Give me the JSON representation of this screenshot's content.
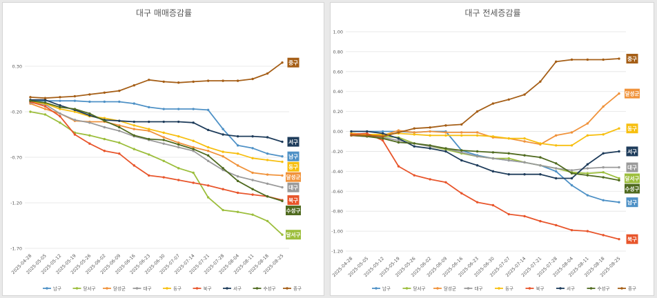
{
  "chart_data": [
    {
      "type": "line",
      "title": "대구 매매증감률",
      "x": [
        "2025-04-28",
        "2025-05-05",
        "2025-05-12",
        "2025-05-19",
        "2025-05-26",
        "2025-06-02",
        "2025-06-09",
        "2025-06-16",
        "2025-06-23",
        "2025-06-30",
        "2025-07-07",
        "2025-07-14",
        "2025-07-21",
        "2025-07-28",
        "2025-08-04",
        "2025-08-11",
        "2025-08-18",
        "2025-08-25"
      ],
      "ylim": [
        -1.7,
        0.8
      ],
      "yticks": [
        -1.7,
        -1.2,
        -0.7,
        -0.2,
        0.3
      ],
      "ytick_labels": [
        "-1.70",
        "-1.20",
        "-0.70",
        "-0.20",
        "0.30"
      ],
      "grid": "horizontal",
      "legend": "bottom",
      "series": [
        {
          "name": "남구",
          "color": "#4e91c6",
          "values": [
            -0.08,
            -0.08,
            -0.08,
            -0.08,
            -0.09,
            -0.09,
            -0.09,
            -0.11,
            -0.15,
            -0.17,
            -0.17,
            -0.17,
            -0.18,
            -0.39,
            -0.57,
            -0.6,
            -0.66,
            -0.69
          ]
        },
        {
          "name": "달서구",
          "color": "#9cbe3c",
          "values": [
            -0.2,
            -0.23,
            -0.32,
            -0.43,
            -0.46,
            -0.5,
            -0.54,
            -0.61,
            -0.67,
            -0.74,
            -0.82,
            -0.87,
            -1.14,
            -1.28,
            -1.3,
            -1.33,
            -1.4,
            -1.55
          ]
        },
        {
          "name": "달성군",
          "color": "#f0923a",
          "values": [
            -0.11,
            -0.17,
            -0.22,
            -0.3,
            -0.31,
            -0.31,
            -0.35,
            -0.39,
            -0.41,
            -0.48,
            -0.54,
            -0.59,
            -0.63,
            -0.69,
            -0.79,
            -0.87,
            -0.89,
            -0.9
          ]
        },
        {
          "name": "대구",
          "color": "#9a9a9a",
          "values": [
            -0.1,
            -0.12,
            -0.22,
            -0.29,
            -0.32,
            -0.37,
            -0.41,
            -0.47,
            -0.51,
            -0.55,
            -0.59,
            -0.63,
            -0.74,
            -0.84,
            -0.91,
            -0.95,
            -0.99,
            -1.03
          ]
        },
        {
          "name": "동구",
          "color": "#f7bf10",
          "values": [
            -0.09,
            -0.11,
            -0.17,
            -0.2,
            -0.25,
            -0.27,
            -0.3,
            -0.35,
            -0.39,
            -0.43,
            -0.47,
            -0.52,
            -0.59,
            -0.64,
            -0.66,
            -0.71,
            -0.73,
            -0.75
          ]
        },
        {
          "name": "북구",
          "color": "#e8552b",
          "values": [
            -0.09,
            -0.14,
            -0.25,
            -0.45,
            -0.55,
            -0.63,
            -0.66,
            -0.79,
            -0.9,
            -0.92,
            -0.95,
            -0.98,
            -1.01,
            -1.05,
            -1.09,
            -1.11,
            -1.13,
            -1.17
          ]
        },
        {
          "name": "서구",
          "color": "#1e3c5b",
          "values": [
            -0.07,
            -0.07,
            -0.13,
            -0.18,
            -0.24,
            -0.29,
            -0.3,
            -0.31,
            -0.31,
            -0.31,
            -0.31,
            -0.32,
            -0.4,
            -0.45,
            -0.47,
            -0.47,
            -0.48,
            -0.53
          ]
        },
        {
          "name": "수성구",
          "color": "#4f6a1f",
          "values": [
            -0.08,
            -0.1,
            -0.15,
            -0.17,
            -0.22,
            -0.3,
            -0.37,
            -0.46,
            -0.5,
            -0.51,
            -0.56,
            -0.61,
            -0.68,
            -0.82,
            -0.96,
            -1.05,
            -1.13,
            -1.18
          ]
        },
        {
          "name": "중구",
          "color": "#a55e16",
          "values": [
            -0.04,
            -0.05,
            -0.04,
            -0.03,
            -0.01,
            0.01,
            0.03,
            0.09,
            0.15,
            0.13,
            0.12,
            0.13,
            0.14,
            0.14,
            0.14,
            0.16,
            0.22,
            0.34
          ]
        }
      ]
    },
    {
      "type": "line",
      "title": "대구 전세증감률",
      "x": [
        "2025-04-28",
        "2025-05-05",
        "2025-05-12",
        "2025-05-19",
        "2025-05-26",
        "2025-06-02",
        "2025-06-09",
        "2025-06-16",
        "2025-06-23",
        "2025-06-30",
        "2025-07-07",
        "2025-07-14",
        "2025-07-21",
        "2025-07-28",
        "2025-08-04",
        "2025-08-11",
        "2025-08-18",
        "2025-08-25"
      ],
      "ylim": [
        -1.2,
        1.0
      ],
      "yticks": [
        -1.2,
        -1.0,
        -0.8,
        -0.6,
        -0.4,
        -0.2,
        0.0,
        0.2,
        0.4,
        0.6,
        0.8,
        1.0
      ],
      "ytick_labels": [
        "-1.20",
        "-1.00",
        "-0.80",
        "-0.60",
        "-0.40",
        "-0.20",
        "0.00",
        "0.20",
        "0.40",
        "0.60",
        "0.80",
        "1.00"
      ],
      "grid": "horizontal",
      "legend": "bottom",
      "series": [
        {
          "name": "남구",
          "color": "#4e91c6",
          "values": [
            0.0,
            0.0,
            0.0,
            0.0,
            -0.01,
            0.0,
            0.0,
            -0.19,
            -0.24,
            -0.27,
            -0.29,
            -0.31,
            -0.34,
            -0.4,
            -0.54,
            -0.64,
            -0.69,
            -0.71
          ]
        },
        {
          "name": "달서구",
          "color": "#9cbe3c",
          "values": [
            -0.02,
            -0.05,
            -0.05,
            -0.06,
            -0.12,
            -0.15,
            -0.18,
            -0.22,
            -0.25,
            -0.27,
            -0.27,
            -0.31,
            -0.34,
            -0.37,
            -0.41,
            -0.42,
            -0.41,
            -0.47
          ]
        },
        {
          "name": "달성군",
          "color": "#f0923a",
          "values": [
            -0.02,
            -0.03,
            -0.04,
            0.01,
            -0.01,
            0.0,
            -0.01,
            -0.01,
            -0.01,
            -0.06,
            -0.07,
            -0.1,
            -0.13,
            -0.04,
            -0.01,
            0.08,
            0.25,
            0.38
          ]
        },
        {
          "name": "대구",
          "color": "#9a9a9a",
          "values": [
            -0.04,
            -0.05,
            -0.06,
            -0.09,
            -0.12,
            -0.15,
            -0.17,
            -0.21,
            -0.25,
            -0.27,
            -0.29,
            -0.31,
            -0.34,
            -0.37,
            -0.39,
            -0.37,
            -0.36,
            -0.36
          ]
        },
        {
          "name": "동구",
          "color": "#f7bf10",
          "values": [
            -0.02,
            -0.03,
            -0.03,
            -0.02,
            -0.03,
            -0.04,
            -0.04,
            -0.04,
            -0.04,
            -0.05,
            -0.07,
            -0.07,
            -0.12,
            -0.14,
            -0.14,
            -0.04,
            -0.03,
            0.03
          ]
        },
        {
          "name": "북구",
          "color": "#e8552b",
          "values": [
            -0.03,
            -0.02,
            -0.09,
            -0.35,
            -0.44,
            -0.48,
            -0.51,
            -0.62,
            -0.71,
            -0.74,
            -0.83,
            -0.85,
            -0.9,
            -0.94,
            -0.99,
            -1.0,
            -1.04,
            -1.08
          ]
        },
        {
          "name": "서구",
          "color": "#1e3c5b",
          "values": [
            0.0,
            0.0,
            -0.02,
            -0.07,
            -0.15,
            -0.17,
            -0.2,
            -0.29,
            -0.34,
            -0.4,
            -0.43,
            -0.43,
            -0.43,
            -0.47,
            -0.47,
            -0.33,
            -0.22,
            -0.2
          ]
        },
        {
          "name": "수성구",
          "color": "#4f6a1f",
          "values": [
            -0.04,
            -0.05,
            -0.07,
            -0.11,
            -0.12,
            -0.14,
            -0.17,
            -0.19,
            -0.2,
            -0.21,
            -0.22,
            -0.24,
            -0.26,
            -0.32,
            -0.42,
            -0.44,
            -0.46,
            -0.49
          ]
        },
        {
          "name": "중구",
          "color": "#a55e16",
          "values": [
            -0.04,
            -0.04,
            -0.05,
            -0.01,
            0.03,
            0.04,
            0.06,
            0.07,
            0.2,
            0.28,
            0.32,
            0.37,
            0.5,
            0.7,
            0.72,
            0.72,
            0.72,
            0.73
          ]
        }
      ]
    }
  ]
}
